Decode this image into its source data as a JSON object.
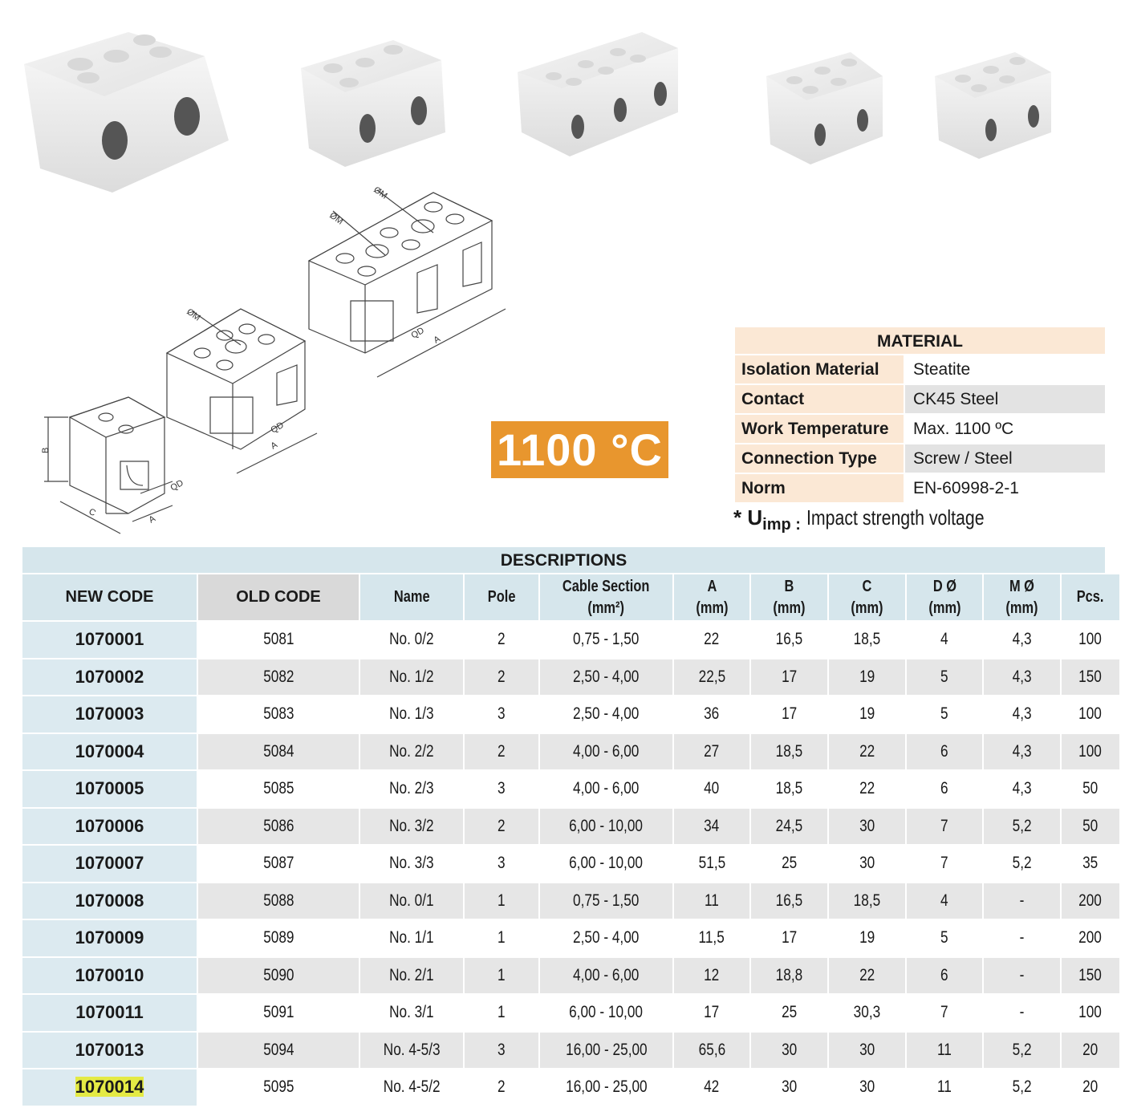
{
  "drawing_labels": {
    "m": "ØM",
    "d": "QD",
    "a": "A",
    "b": "B",
    "c": "C"
  },
  "temperature_badge": "1100 °C",
  "colors": {
    "badge": "#E8962E",
    "material_bg": "#FBE8D5",
    "desc_bg": "#D6E6EC",
    "highlight": "#E4EA44"
  },
  "material": {
    "title": "MATERIAL",
    "rows": [
      {
        "label": "Isolation Material",
        "value": "Steatite"
      },
      {
        "label": "Contact",
        "value": "CK45 Steel"
      },
      {
        "label": "Work Temperature",
        "value": "Max. 1100 ºC"
      },
      {
        "label": "Connection Type",
        "value": "Screw / Steel"
      },
      {
        "label": "Norm",
        "value": "EN-60998-2-1"
      }
    ]
  },
  "uimp": {
    "star": "*",
    "symbol": "U",
    "sub": "imp :",
    "text": "Impact strength voltage"
  },
  "descriptions": {
    "title": "DESCRIPTIONS",
    "headers": [
      [
        "NEW CODE",
        ""
      ],
      [
        "OLD CODE",
        ""
      ],
      [
        "Name",
        ""
      ],
      [
        "Pole",
        ""
      ],
      [
        "Cable Section",
        "(mm²)"
      ],
      [
        "A",
        "(mm)"
      ],
      [
        "B",
        "(mm)"
      ],
      [
        "C",
        "(mm)"
      ],
      [
        "D Ø",
        "(mm)"
      ],
      [
        "M Ø",
        "(mm)"
      ],
      [
        "Pcs.",
        ""
      ]
    ],
    "rows": [
      [
        "1070001",
        "5081",
        "No. 0/2",
        "2",
        "0,75 - 1,50",
        "22",
        "16,5",
        "18,5",
        "4",
        "4,3",
        "100"
      ],
      [
        "1070002",
        "5082",
        "No. 1/2",
        "2",
        "2,50 - 4,00",
        "22,5",
        "17",
        "19",
        "5",
        "4,3",
        "150"
      ],
      [
        "1070003",
        "5083",
        "No. 1/3",
        "3",
        "2,50 - 4,00",
        "36",
        "17",
        "19",
        "5",
        "4,3",
        "100"
      ],
      [
        "1070004",
        "5084",
        "No. 2/2",
        "2",
        "4,00 - 6,00",
        "27",
        "18,5",
        "22",
        "6",
        "4,3",
        "100"
      ],
      [
        "1070005",
        "5085",
        "No. 2/3",
        "3",
        "4,00 - 6,00",
        "40",
        "18,5",
        "22",
        "6",
        "4,3",
        "50"
      ],
      [
        "1070006",
        "5086",
        "No. 3/2",
        "2",
        "6,00 - 10,00",
        "34",
        "24,5",
        "30",
        "7",
        "5,2",
        "50"
      ],
      [
        "1070007",
        "5087",
        "No. 3/3",
        "3",
        "6,00 - 10,00",
        "51,5",
        "25",
        "30",
        "7",
        "5,2",
        "35"
      ],
      [
        "1070008",
        "5088",
        "No. 0/1",
        "1",
        "0,75 - 1,50",
        "11",
        "16,5",
        "18,5",
        "4",
        "-",
        "200"
      ],
      [
        "1070009",
        "5089",
        "No. 1/1",
        "1",
        "2,50 - 4,00",
        "11,5",
        "17",
        "19",
        "5",
        "-",
        "200"
      ],
      [
        "1070010",
        "5090",
        "No. 2/1",
        "1",
        "4,00 - 6,00",
        "12",
        "18,8",
        "22",
        "6",
        "-",
        "150"
      ],
      [
        "1070011",
        "5091",
        "No. 3/1",
        "1",
        "6,00 - 10,00",
        "17",
        "25",
        "30,3",
        "7",
        "-",
        "100"
      ],
      [
        "1070013",
        "5094",
        "No. 4-5/3",
        "3",
        "16,00 - 25,00",
        "65,6",
        "30",
        "30",
        "11",
        "5,2",
        "20"
      ],
      [
        "1070014",
        "5095",
        "No. 4-5/2",
        "2",
        "16,00 - 25,00",
        "42",
        "30",
        "30",
        "11",
        "5,2",
        "20"
      ]
    ],
    "highlighted_code": "1070014"
  }
}
